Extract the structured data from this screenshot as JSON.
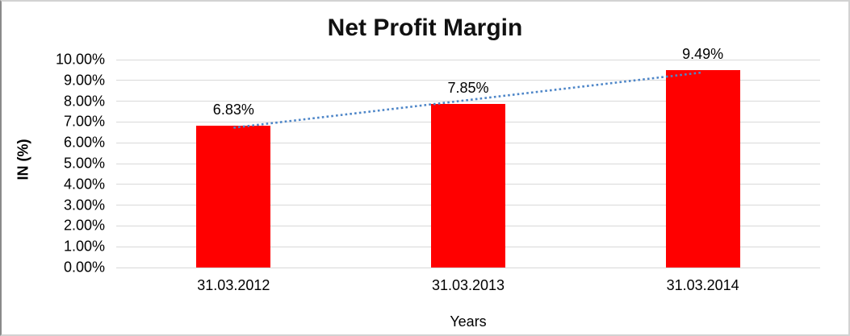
{
  "chart_data": {
    "type": "bar",
    "title": "Net Profit Margin",
    "categories": [
      "31.03.2012",
      "31.03.2013",
      "31.03.2014"
    ],
    "values": [
      6.83,
      7.85,
      9.49
    ],
    "data_labels": [
      "6.83%",
      "7.85%",
      "9.49%"
    ],
    "xlabel": "Years",
    "ylabel": "IN (%)",
    "ylim": [
      0,
      10
    ],
    "ytick_step": 1,
    "ytick_labels": [
      "0.00%",
      "1.00%",
      "2.00%",
      "3.00%",
      "4.00%",
      "5.00%",
      "6.00%",
      "7.00%",
      "8.00%",
      "9.00%",
      "10.00%"
    ],
    "grid": true,
    "legend": "none",
    "bar_color": "#FF0000",
    "gridline_color": "#D9D9D9",
    "trendline": {
      "type": "linear",
      "style": "dotted",
      "color": "#4E86C8"
    }
  }
}
